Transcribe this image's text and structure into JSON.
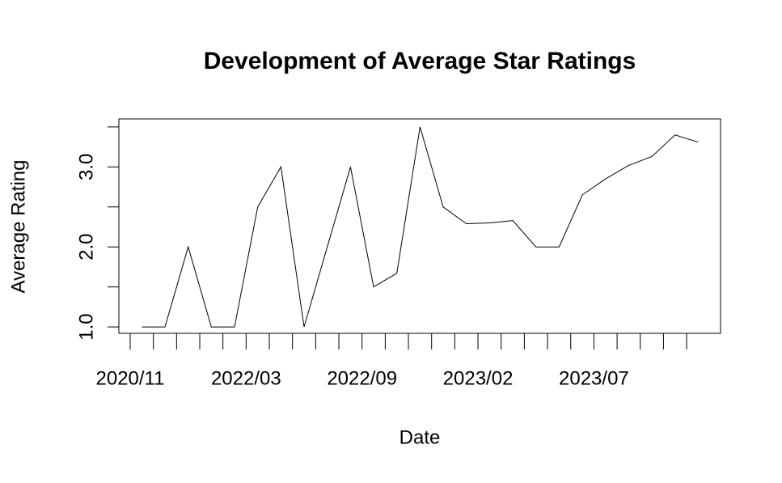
{
  "chart_data": {
    "type": "line",
    "title": "Development of Average Star Ratings",
    "x_label": "Date",
    "y_label": "Average Rating",
    "categories": [
      "2020/11",
      null,
      null,
      null,
      null,
      "2022/03",
      null,
      null,
      null,
      null,
      "2022/09",
      null,
      null,
      null,
      null,
      "2023/02",
      null,
      null,
      null,
      null,
      "2023/07",
      null,
      null,
      null,
      null
    ],
    "values": [
      1.0,
      1.0,
      2.0,
      1.0,
      1.0,
      2.5,
      3.0,
      1.0,
      2.0,
      3.0,
      1.5,
      1.67,
      3.5,
      2.5,
      2.29,
      2.3,
      2.33,
      2.0,
      2.0,
      2.65,
      2.85,
      3.02,
      3.13,
      3.4,
      3.31
    ],
    "color": "#000000",
    "ylim": [
      0.92,
      3.6
    ],
    "yticks": [
      {
        "value": 1,
        "label": "1.0"
      },
      1.5,
      {
        "value": 2,
        "label": "2.0"
      },
      2.5,
      {
        "value": 3,
        "label": "3.0"
      },
      3.5
    ]
  }
}
